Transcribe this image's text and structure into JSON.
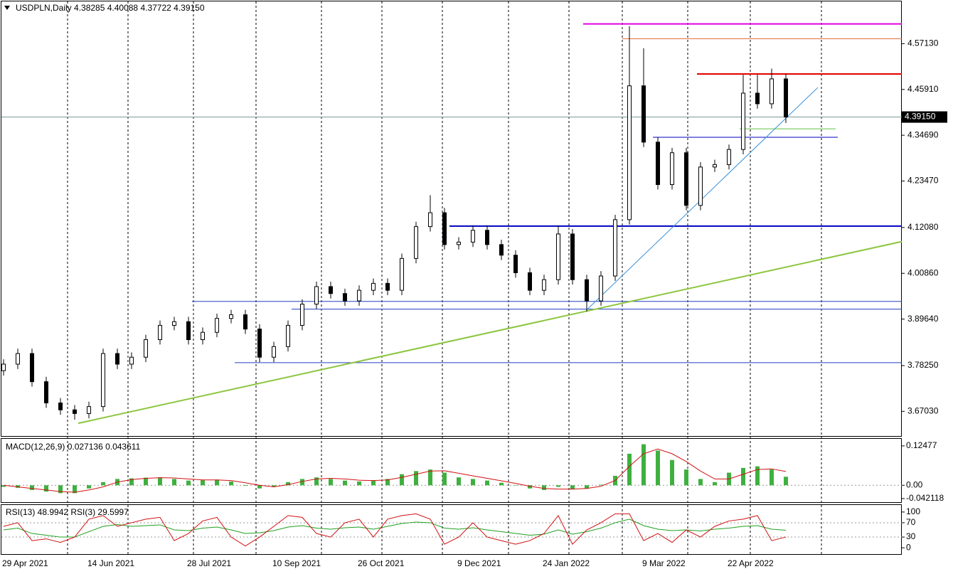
{
  "chart_data": [
    {
      "type": "candlestick",
      "title": "USDPLN,Daily  4.38285 4.40088 4.37722 4.39150",
      "categories": [
        "29 Apr 2021",
        null,
        null,
        null,
        null,
        null,
        "14 Jun 2021",
        null,
        null,
        null,
        null,
        null,
        null,
        "28 Jul 2021",
        null,
        null,
        null,
        null,
        null,
        "10 Sep 2021",
        null,
        null,
        null,
        null,
        null,
        "26 Oct 2021",
        null,
        null,
        null,
        null,
        null,
        null,
        "9 Dec 2021",
        null,
        null,
        null,
        null,
        null,
        "24 Jan 2022",
        null,
        null,
        null,
        null,
        null,
        null,
        "9 Mar 2022",
        null,
        null,
        null,
        null,
        null,
        "22 Apr 2022",
        null,
        null,
        null,
        null
      ],
      "open": [
        3.77,
        3.786,
        3.812,
        3.743,
        3.691,
        3.674,
        3.665,
        3.682,
        3.812,
        3.786,
        3.803,
        3.846,
        3.881,
        3.89,
        3.846,
        3.864,
        3.898,
        3.907,
        3.872,
        3.803,
        3.829,
        3.881,
        3.933,
        3.976,
        3.959,
        3.941,
        3.967,
        3.984,
        3.967,
        4.045,
        4.123,
        4.157,
        4.079,
        4.085,
        4.114,
        4.079,
        4.053,
        4.01,
        3.967,
        3.993,
        4.105,
        3.993,
        3.941,
        4.002,
        4.14,
        4.468,
        4.33,
        4.226,
        4.304,
        4.175,
        4.269,
        4.275,
        4.312,
        4.45,
        4.424,
        4.485
      ],
      "high": [
        3.798,
        3.824,
        3.824,
        3.755,
        3.703,
        3.686,
        3.694,
        3.824,
        3.824,
        3.815,
        3.858,
        3.893,
        3.902,
        3.902,
        3.876,
        3.91,
        3.919,
        3.919,
        3.884,
        3.841,
        3.893,
        3.945,
        3.988,
        3.988,
        3.971,
        3.979,
        3.996,
        3.996,
        4.057,
        4.135,
        4.2,
        4.169,
        4.097,
        4.126,
        4.126,
        4.091,
        4.065,
        4.022,
        4.005,
        4.125,
        4.117,
        4.005,
        4.014,
        4.152,
        4.614,
        4.56,
        4.342,
        4.316,
        4.316,
        4.281,
        4.287,
        4.324,
        4.495,
        4.495,
        4.51,
        4.497
      ],
      "low": [
        3.758,
        3.774,
        3.731,
        3.679,
        3.662,
        3.65,
        3.653,
        3.67,
        3.774,
        3.774,
        3.791,
        3.834,
        3.869,
        3.834,
        3.834,
        3.852,
        3.886,
        3.86,
        3.791,
        3.791,
        3.817,
        3.869,
        3.921,
        3.947,
        3.929,
        3.929,
        3.955,
        3.955,
        3.955,
        4.033,
        4.111,
        4.067,
        4.067,
        4.073,
        4.067,
        4.041,
        3.998,
        3.955,
        3.955,
        3.981,
        3.981,
        3.915,
        3.929,
        3.99,
        4.128,
        4.318,
        4.214,
        4.214,
        4.163,
        4.163,
        4.257,
        4.263,
        4.3,
        4.412,
        4.412,
        4.377
      ],
      "close": [
        3.786,
        3.812,
        3.743,
        3.691,
        3.674,
        3.665,
        3.682,
        3.812,
        3.786,
        3.803,
        3.846,
        3.881,
        3.89,
        3.846,
        3.864,
        3.898,
        3.907,
        3.872,
        3.803,
        3.829,
        3.881,
        3.933,
        3.976,
        3.959,
        3.941,
        3.967,
        3.984,
        3.967,
        4.045,
        4.123,
        4.157,
        4.079,
        4.085,
        4.114,
        4.079,
        4.053,
        4.01,
        3.967,
        3.993,
        4.105,
        3.993,
        3.941,
        4.002,
        4.14,
        4.468,
        4.33,
        4.226,
        4.304,
        4.175,
        4.269,
        4.275,
        4.312,
        4.45,
        4.424,
        4.485,
        4.3915
      ],
      "ylim": [
        3.6099,
        4.6748
      ],
      "yticks": [
        {
          "value": 4.5713,
          "label": "4.57130"
        },
        {
          "value": 4.4591,
          "label": "4.45910"
        },
        {
          "value": 4.3469,
          "label": "4.34690"
        },
        {
          "value": 4.2347,
          "label": "4.23470"
        },
        {
          "value": 4.1208,
          "label": "4.12080"
        },
        {
          "value": 4.0086,
          "label": "4.00860"
        },
        {
          "value": 3.8964,
          "label": "3.89640"
        },
        {
          "value": 3.7825,
          "label": "3.78250"
        },
        {
          "value": 3.6703,
          "label": "3.67030"
        }
      ],
      "current_price": {
        "value": 4.3915,
        "label": "4.39150"
      },
      "levels": [
        {
          "value": 4.6196,
          "color": "#e000e0"
        },
        {
          "value": 4.5833,
          "color": "#e07040"
        },
        {
          "value": 4.4971,
          "color": "#e00000"
        },
        {
          "value": 4.3625,
          "color": "#60c040"
        },
        {
          "value": 4.342,
          "color": "#0000c0"
        },
        {
          "value": 4.1243,
          "color": "#0000c0"
        },
        {
          "value": 3.9397,
          "color": "#2040c0"
        },
        {
          "value": 3.9207,
          "color": "#2040c0"
        },
        {
          "value": 3.7896,
          "color": "#2040c0"
        }
      ],
      "trendlines": [
        {
          "values": [
            3.641,
            4.0864
          ],
          "color": "#8cc63f"
        },
        {
          "values": [
            3.919,
            4.464
          ],
          "color": "#3a8fd8"
        }
      ]
    },
    {
      "type": "macd",
      "title": "MACD(12,26,9) 0.027136 0.043611",
      "histogram": [
        -0.005,
        -0.008,
        -0.015,
        -0.02,
        -0.025,
        -0.025,
        -0.01,
        0.01,
        0.02,
        0.022,
        0.024,
        0.025,
        0.02,
        0.015,
        0.016,
        0.018,
        0.012,
        -0.002,
        -0.01,
        -0.005,
        0.01,
        0.02,
        0.025,
        0.02,
        0.015,
        0.012,
        0.015,
        0.02,
        0.035,
        0.045,
        0.05,
        0.04,
        0.025,
        0.02,
        0.015,
        0.008,
        0.0,
        -0.01,
        -0.015,
        -0.005,
        -0.012,
        -0.01,
        0.002,
        0.03,
        0.1,
        0.13,
        0.11,
        0.08,
        0.05,
        0.02,
        0.01,
        0.04,
        0.055,
        0.06,
        0.05,
        0.027
      ],
      "signal": [
        0.0,
        -0.005,
        -0.01,
        -0.015,
        -0.02,
        -0.022,
        -0.015,
        -0.005,
        0.01,
        0.018,
        0.022,
        0.024,
        0.023,
        0.02,
        0.017,
        0.017,
        0.015,
        0.008,
        0.0,
        -0.005,
        0.002,
        0.012,
        0.02,
        0.022,
        0.02,
        0.016,
        0.015,
        0.017,
        0.025,
        0.035,
        0.045,
        0.046,
        0.038,
        0.03,
        0.022,
        0.014,
        0.006,
        -0.003,
        -0.01,
        -0.012,
        -0.012,
        -0.01,
        -0.003,
        0.015,
        0.06,
        0.1,
        0.115,
        0.1,
        0.075,
        0.045,
        0.02,
        0.02,
        0.035,
        0.05,
        0.052,
        0.0436
      ],
      "hist_color": "#3fb03f",
      "signal_color": "#d01010",
      "ylim": [
        -0.0535,
        0.1471
      ],
      "yticks": [
        0.12477,
        {
          "value": 0,
          "label": "0.00"
        },
        -0.042118
      ]
    },
    {
      "type": "rsi",
      "title": "RSI(13) 48.9942  RSI(3) 29.5997",
      "series": [
        {
          "color": "#20a020",
          "values": [
            50,
            55,
            40,
            35,
            30,
            30,
            45,
            60,
            65,
            60,
            62,
            64,
            50,
            48,
            55,
            58,
            50,
            40,
            42,
            48,
            58,
            62,
            55,
            52,
            56,
            58,
            52,
            60,
            68,
            72,
            70,
            55,
            52,
            56,
            50,
            45,
            40,
            35,
            38,
            50,
            38,
            45,
            55,
            70,
            80,
            62,
            52,
            48,
            50,
            47,
            52,
            55,
            60,
            62,
            52,
            49
          ]
        },
        {
          "color": "#d01010",
          "values": [
            60,
            70,
            20,
            25,
            15,
            30,
            80,
            90,
            60,
            70,
            80,
            85,
            20,
            40,
            75,
            85,
            30,
            5,
            30,
            60,
            90,
            85,
            40,
            30,
            70,
            80,
            30,
            80,
            90,
            95,
            80,
            10,
            30,
            70,
            30,
            20,
            10,
            20,
            40,
            90,
            10,
            50,
            70,
            95,
            95,
            20,
            40,
            15,
            50,
            30,
            60,
            75,
            80,
            90,
            20,
            30
          ]
        }
      ],
      "ylim": [
        -17.6,
        119.6
      ],
      "yticks": [
        100,
        70,
        30,
        0
      ],
      "levels": [
        70,
        30
      ]
    }
  ]
}
